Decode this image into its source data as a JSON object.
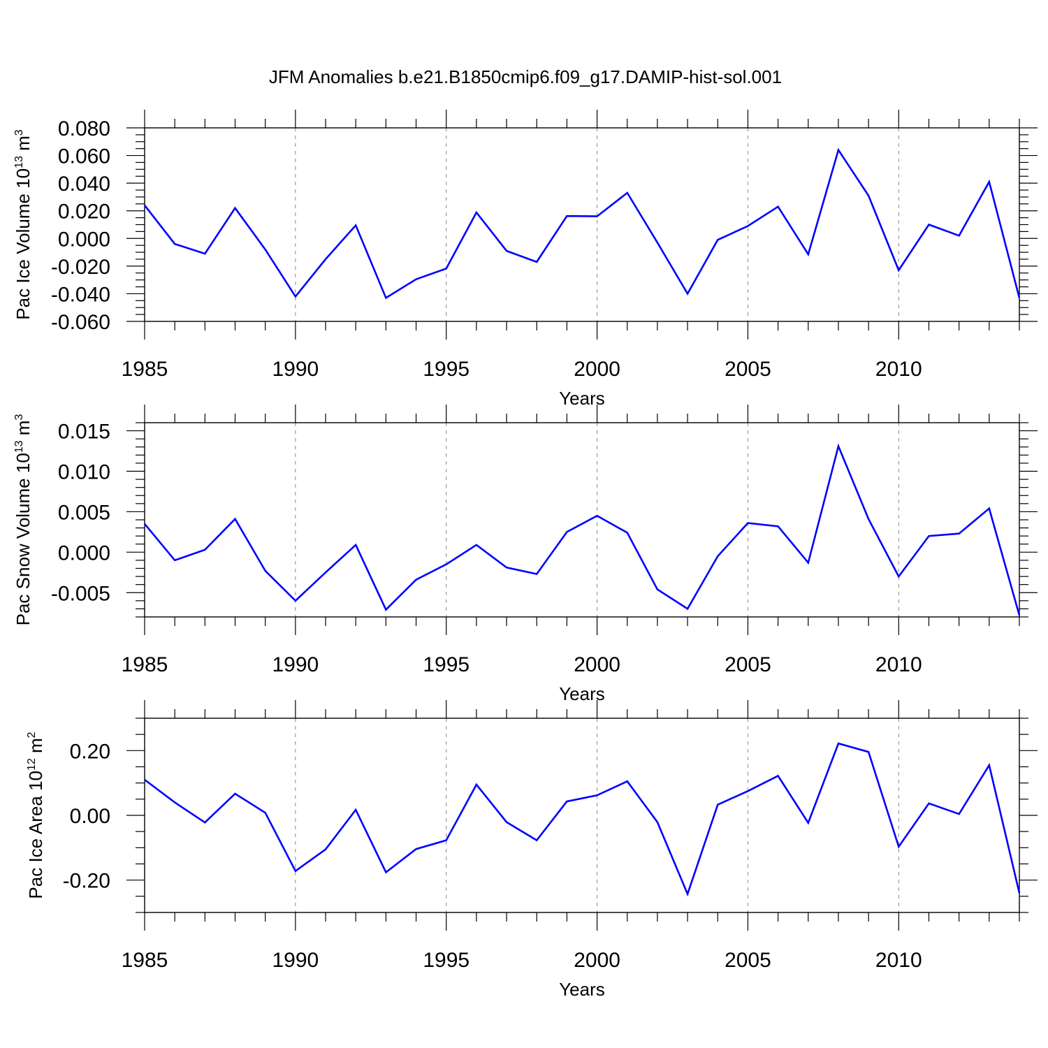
{
  "title": "JFM Anomalies b.e21.B1850cmip6.f09_g17.DAMIP-hist-sol.001",
  "colors": {
    "line": "#0000ff",
    "axis": "#000000",
    "grid": "#999999"
  },
  "chart_data": [
    {
      "type": "line",
      "ylabel_main": "Pac Ice Volume 10",
      "ylabel_exp": "13",
      "ylabel_unit": " m",
      "ylabel_unit_exp": "3",
      "xlabel": "Years",
      "xlim": [
        1985,
        2014
      ],
      "ylim": [
        -0.06,
        0.08
      ],
      "x_ticks": [
        1985,
        1990,
        1995,
        2000,
        2005,
        2010
      ],
      "x_tick_labels": [
        "1985",
        "1990",
        "1995",
        "2000",
        "2005",
        "2010"
      ],
      "y_ticks": [
        -0.06,
        -0.04,
        -0.02,
        0.0,
        0.02,
        0.04,
        0.06,
        0.08
      ],
      "y_tick_labels": [
        "-0.060",
        "-0.040",
        "-0.020",
        "0.000",
        "0.020",
        "0.040",
        "0.060",
        "0.080"
      ],
      "y_minor_step": 0.005,
      "grid_x": true,
      "series": [
        {
          "x": [
            1985,
            1986,
            1987,
            1988,
            1989,
            1990,
            1991,
            1992,
            1993,
            1994,
            1995,
            1996,
            1997,
            1998,
            1999,
            2000,
            2001,
            2002,
            2003,
            2004,
            2005,
            2006,
            2007,
            2008,
            2009,
            2010,
            2011,
            2012,
            2013,
            2014
          ],
          "values": [
            0.024,
            -0.004,
            -0.011,
            0.022,
            -0.008,
            -0.042,
            -0.015,
            0.0095,
            -0.043,
            -0.0295,
            -0.0218,
            0.0188,
            -0.009,
            -0.017,
            0.0162,
            0.016,
            0.033,
            -0.003,
            -0.04,
            -0.001,
            0.009,
            0.023,
            -0.0115,
            0.064,
            0.031,
            -0.023,
            0.01,
            0.002,
            0.041,
            -0.043
          ]
        }
      ]
    },
    {
      "type": "line",
      "ylabel_main": "Pac Snow Volume 10",
      "ylabel_exp": "13",
      "ylabel_unit": " m",
      "ylabel_unit_exp": "3",
      "xlabel": "Years",
      "xlim": [
        1985,
        2014
      ],
      "ylim": [
        -0.008,
        0.016
      ],
      "x_ticks": [
        1985,
        1990,
        1995,
        2000,
        2005,
        2010
      ],
      "x_tick_labels": [
        "1985",
        "1990",
        "1995",
        "2000",
        "2005",
        "2010"
      ],
      "y_ticks": [
        -0.005,
        0.0,
        0.005,
        0.01,
        0.015
      ],
      "y_tick_labels": [
        "-0.005",
        "0.000",
        "0.005",
        "0.010",
        "0.015"
      ],
      "y_minor_step": 0.001,
      "grid_x": true,
      "series": [
        {
          "x": [
            1985,
            1986,
            1987,
            1988,
            1989,
            1990,
            1991,
            1992,
            1993,
            1994,
            1995,
            1996,
            1997,
            1998,
            1999,
            2000,
            2001,
            2002,
            2003,
            2004,
            2005,
            2006,
            2007,
            2008,
            2009,
            2010,
            2011,
            2012,
            2013,
            2014
          ],
          "values": [
            0.0035,
            -0.001,
            0.0003,
            0.0041,
            -0.0023,
            -0.006,
            -0.0025,
            0.0009,
            -0.0071,
            -0.0034,
            -0.0015,
            0.0009,
            -0.0019,
            -0.0027,
            0.0025,
            0.0045,
            0.0024,
            -0.0046,
            -0.007,
            -0.0005,
            0.0036,
            0.0032,
            -0.0013,
            0.0131,
            0.0041,
            -0.003,
            0.002,
            0.0023,
            0.0054,
            -0.0078
          ]
        }
      ]
    },
    {
      "type": "line",
      "ylabel_main": "Pac Ice Area 10",
      "ylabel_exp": "12",
      "ylabel_unit": " m",
      "ylabel_unit_exp": "2",
      "xlabel": "Years",
      "xlim": [
        1985,
        2014
      ],
      "ylim": [
        -0.3,
        0.3
      ],
      "x_ticks": [
        1985,
        1990,
        1995,
        2000,
        2005,
        2010
      ],
      "x_tick_labels": [
        "1985",
        "1990",
        "1995",
        "2000",
        "2005",
        "2010"
      ],
      "y_ticks": [
        -0.2,
        0.0,
        0.2
      ],
      "y_tick_labels": [
        "-0.20",
        "0.00",
        "0.20"
      ],
      "y_minor_step": 0.05,
      "grid_x": true,
      "series": [
        {
          "x": [
            1985,
            1986,
            1987,
            1988,
            1989,
            1990,
            1991,
            1992,
            1993,
            1994,
            1995,
            1996,
            1997,
            1998,
            1999,
            2000,
            2001,
            2002,
            2003,
            2004,
            2005,
            2006,
            2007,
            2008,
            2009,
            2010,
            2011,
            2012,
            2013,
            2014
          ],
          "values": [
            0.11,
            0.04,
            -0.022,
            0.067,
            0.008,
            -0.172,
            -0.105,
            0.017,
            -0.176,
            -0.104,
            -0.077,
            0.095,
            -0.021,
            -0.077,
            0.043,
            0.062,
            0.105,
            -0.021,
            -0.243,
            0.033,
            0.075,
            0.122,
            -0.023,
            0.222,
            0.196,
            -0.097,
            0.037,
            0.004,
            0.155,
            -0.24
          ]
        }
      ]
    }
  ]
}
